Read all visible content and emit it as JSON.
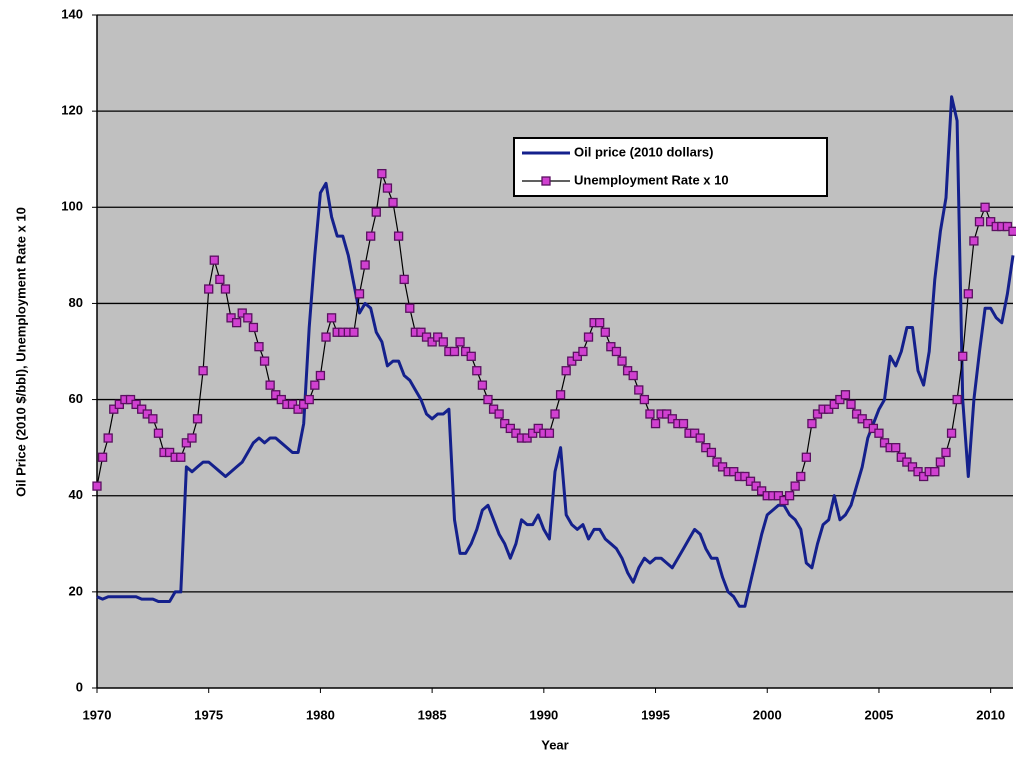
{
  "chart_data": {
    "type": "line",
    "x_label": "Year",
    "y_label": "Oil Price (2010 $/bbl), Unemployment Rate x 10",
    "xlim": [
      1970,
      2011
    ],
    "xticks": [
      1970,
      1975,
      1980,
      1985,
      1990,
      1995,
      2000,
      2005,
      2010
    ],
    "ylim": [
      0,
      140
    ],
    "yticks": [
      0,
      20,
      40,
      60,
      80,
      100,
      120,
      140
    ],
    "grid": true,
    "legend": "upper center",
    "x": [
      1970,
      1970.25,
      1970.5,
      1970.75,
      1971,
      1971.25,
      1971.5,
      1971.75,
      1972,
      1972.25,
      1972.5,
      1972.75,
      1973,
      1973.25,
      1973.5,
      1973.75,
      1974,
      1974.25,
      1974.5,
      1974.75,
      1975,
      1975.25,
      1975.5,
      1975.75,
      1976,
      1976.25,
      1976.5,
      1976.75,
      1977,
      1977.25,
      1977.5,
      1977.75,
      1978,
      1978.25,
      1978.5,
      1978.75,
      1979,
      1979.25,
      1979.5,
      1979.75,
      1980,
      1980.25,
      1980.5,
      1980.75,
      1981,
      1981.25,
      1981.5,
      1981.75,
      1982,
      1982.25,
      1982.5,
      1982.75,
      1983,
      1983.25,
      1983.5,
      1983.75,
      1984,
      1984.25,
      1984.5,
      1984.75,
      1985,
      1985.25,
      1985.5,
      1985.75,
      1986,
      1986.25,
      1986.5,
      1986.75,
      1987,
      1987.25,
      1987.5,
      1987.75,
      1988,
      1988.25,
      1988.5,
      1988.75,
      1989,
      1989.25,
      1989.5,
      1989.75,
      1990,
      1990.25,
      1990.5,
      1990.75,
      1991,
      1991.25,
      1991.5,
      1991.75,
      1992,
      1992.25,
      1992.5,
      1992.75,
      1993,
      1993.25,
      1993.5,
      1993.75,
      1994,
      1994.25,
      1994.5,
      1994.75,
      1995,
      1995.25,
      1995.5,
      1995.75,
      1996,
      1996.25,
      1996.5,
      1996.75,
      1997,
      1997.25,
      1997.5,
      1997.75,
      1998,
      1998.25,
      1998.5,
      1998.75,
      1999,
      1999.25,
      1999.5,
      1999.75,
      2000,
      2000.25,
      2000.5,
      2000.75,
      2001,
      2001.25,
      2001.5,
      2001.75,
      2002,
      2002.25,
      2002.5,
      2002.75,
      2003,
      2003.25,
      2003.5,
      2003.75,
      2004,
      2004.25,
      2004.5,
      2004.75,
      2005,
      2005.25,
      2005.5,
      2005.75,
      2006,
      2006.25,
      2006.5,
      2006.75,
      2007,
      2007.25,
      2007.5,
      2007.75,
      2008,
      2008.25,
      2008.5,
      2008.75,
      2009,
      2009.25,
      2009.5,
      2009.75,
      2010,
      2010.25,
      2010.5,
      2010.75,
      2011
    ],
    "series": [
      {
        "name": "Oil price (2010 dollars)",
        "color": "#14208c",
        "markers": false,
        "values": [
          19,
          18.5,
          19,
          19,
          19,
          19,
          19,
          19,
          18.5,
          18.5,
          18.5,
          18,
          18,
          18,
          20,
          20,
          46,
          45,
          46,
          47,
          47,
          46,
          45,
          44,
          45,
          46,
          47,
          49,
          51,
          52,
          51,
          52,
          52,
          51,
          50,
          49,
          49,
          55,
          75,
          90,
          103,
          105,
          98,
          94,
          94,
          90,
          84,
          78,
          80,
          79,
          74,
          72,
          67,
          68,
          68,
          65,
          64,
          62,
          60,
          57,
          56,
          57,
          57,
          58,
          35,
          28,
          28,
          30,
          33,
          37,
          38,
          35,
          32,
          30,
          27,
          30,
          35,
          34,
          34,
          36,
          33,
          31,
          45,
          50,
          36,
          34,
          33,
          34,
          31,
          33,
          33,
          31,
          30,
          29,
          27,
          24,
          22,
          25,
          27,
          26,
          27,
          27,
          26,
          25,
          27,
          29,
          31,
          33,
          32,
          29,
          27,
          27,
          23,
          20,
          19,
          17,
          17,
          22,
          27,
          32,
          36,
          37,
          38,
          38,
          36,
          35,
          33,
          26,
          25,
          30,
          34,
          35,
          40,
          35,
          36,
          38,
          42,
          46,
          52,
          55,
          58,
          60,
          69,
          67,
          70,
          75,
          75,
          66,
          63,
          70,
          85,
          95,
          102,
          123,
          118,
          60,
          44,
          60,
          70,
          79,
          79,
          77,
          76,
          82,
          90
        ]
      },
      {
        "name": "Unemployment Rate x 10",
        "color": "#000000",
        "marker_color": "#d040d0",
        "markers": true,
        "values": [
          42,
          48,
          52,
          58,
          59,
          60,
          60,
          59,
          58,
          57,
          56,
          53,
          49,
          49,
          48,
          48,
          51,
          52,
          56,
          66,
          83,
          89,
          85,
          83,
          77,
          76,
          78,
          77,
          75,
          71,
          68,
          63,
          61,
          60,
          59,
          59,
          58,
          59,
          60,
          63,
          65,
          73,
          77,
          74,
          74,
          74,
          74,
          82,
          88,
          94,
          99,
          107,
          104,
          101,
          94,
          85,
          79,
          74,
          74,
          73,
          72,
          73,
          72,
          70,
          70,
          72,
          70,
          69,
          66,
          63,
          60,
          58,
          57,
          55,
          54,
          53,
          52,
          52,
          53,
          54,
          53,
          53,
          57,
          61,
          66,
          68,
          69,
          70,
          73,
          76,
          76,
          74,
          71,
          70,
          68,
          66,
          65,
          62,
          60,
          57,
          55,
          57,
          57,
          56,
          55,
          55,
          53,
          53,
          52,
          50,
          49,
          47,
          46,
          45,
          45,
          44,
          44,
          43,
          42,
          41,
          40,
          40,
          40,
          39,
          40,
          42,
          44,
          48,
          55,
          57,
          58,
          58,
          59,
          60,
          61,
          59,
          57,
          56,
          55,
          54,
          53,
          51,
          50,
          50,
          48,
          47,
          46,
          45,
          44,
          45,
          45,
          47,
          49,
          53,
          60,
          69,
          82,
          93,
          97,
          100,
          97,
          96,
          96,
          96,
          95
        ]
      }
    ]
  }
}
